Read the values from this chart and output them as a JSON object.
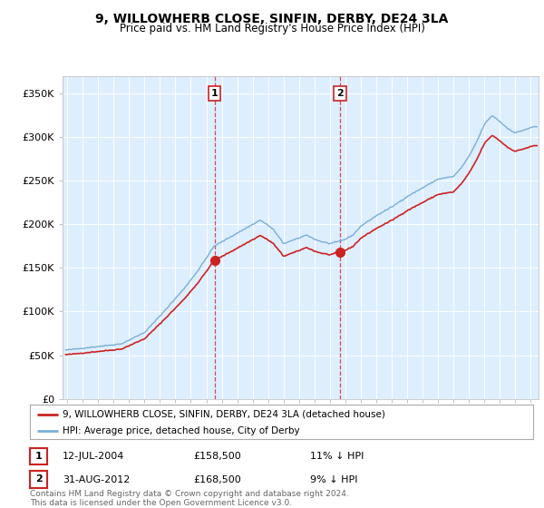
{
  "title": "9, WILLOWHERB CLOSE, SINFIN, DERBY, DE24 3LA",
  "subtitle": "Price paid vs. HM Land Registry's House Price Index (HPI)",
  "ylabel_ticks": [
    "£0",
    "£50K",
    "£100K",
    "£150K",
    "£200K",
    "£250K",
    "£300K",
    "£350K"
  ],
  "ytick_values": [
    0,
    50000,
    100000,
    150000,
    200000,
    250000,
    300000,
    350000
  ],
  "ylim": [
    0,
    370000
  ],
  "xlim_start": 1994.7,
  "xlim_end": 2025.5,
  "hpi_color": "#7aaed6",
  "price_color": "#cc2222",
  "sale1_date": 2004.53,
  "sale1_price": 158500,
  "sale2_date": 2012.66,
  "sale2_price": 168500,
  "legend_line1": "9, WILLOWHERB CLOSE, SINFIN, DERBY, DE24 3LA (detached house)",
  "legend_line2": "HPI: Average price, detached house, City of Derby",
  "sale1_text": "12-JUL-2004",
  "sale1_price_text": "£158,500",
  "sale1_pct": "11% ↓ HPI",
  "sale2_text": "31-AUG-2012",
  "sale2_price_text": "£168,500",
  "sale2_pct": "9% ↓ HPI",
  "footer": "Contains HM Land Registry data © Crown copyright and database right 2024.\nThis data is licensed under the Open Government Licence v3.0.",
  "background_color": "#ffffff",
  "plot_bg_color": "#ddeeff",
  "title_fontsize": 10,
  "subtitle_fontsize": 8.5
}
